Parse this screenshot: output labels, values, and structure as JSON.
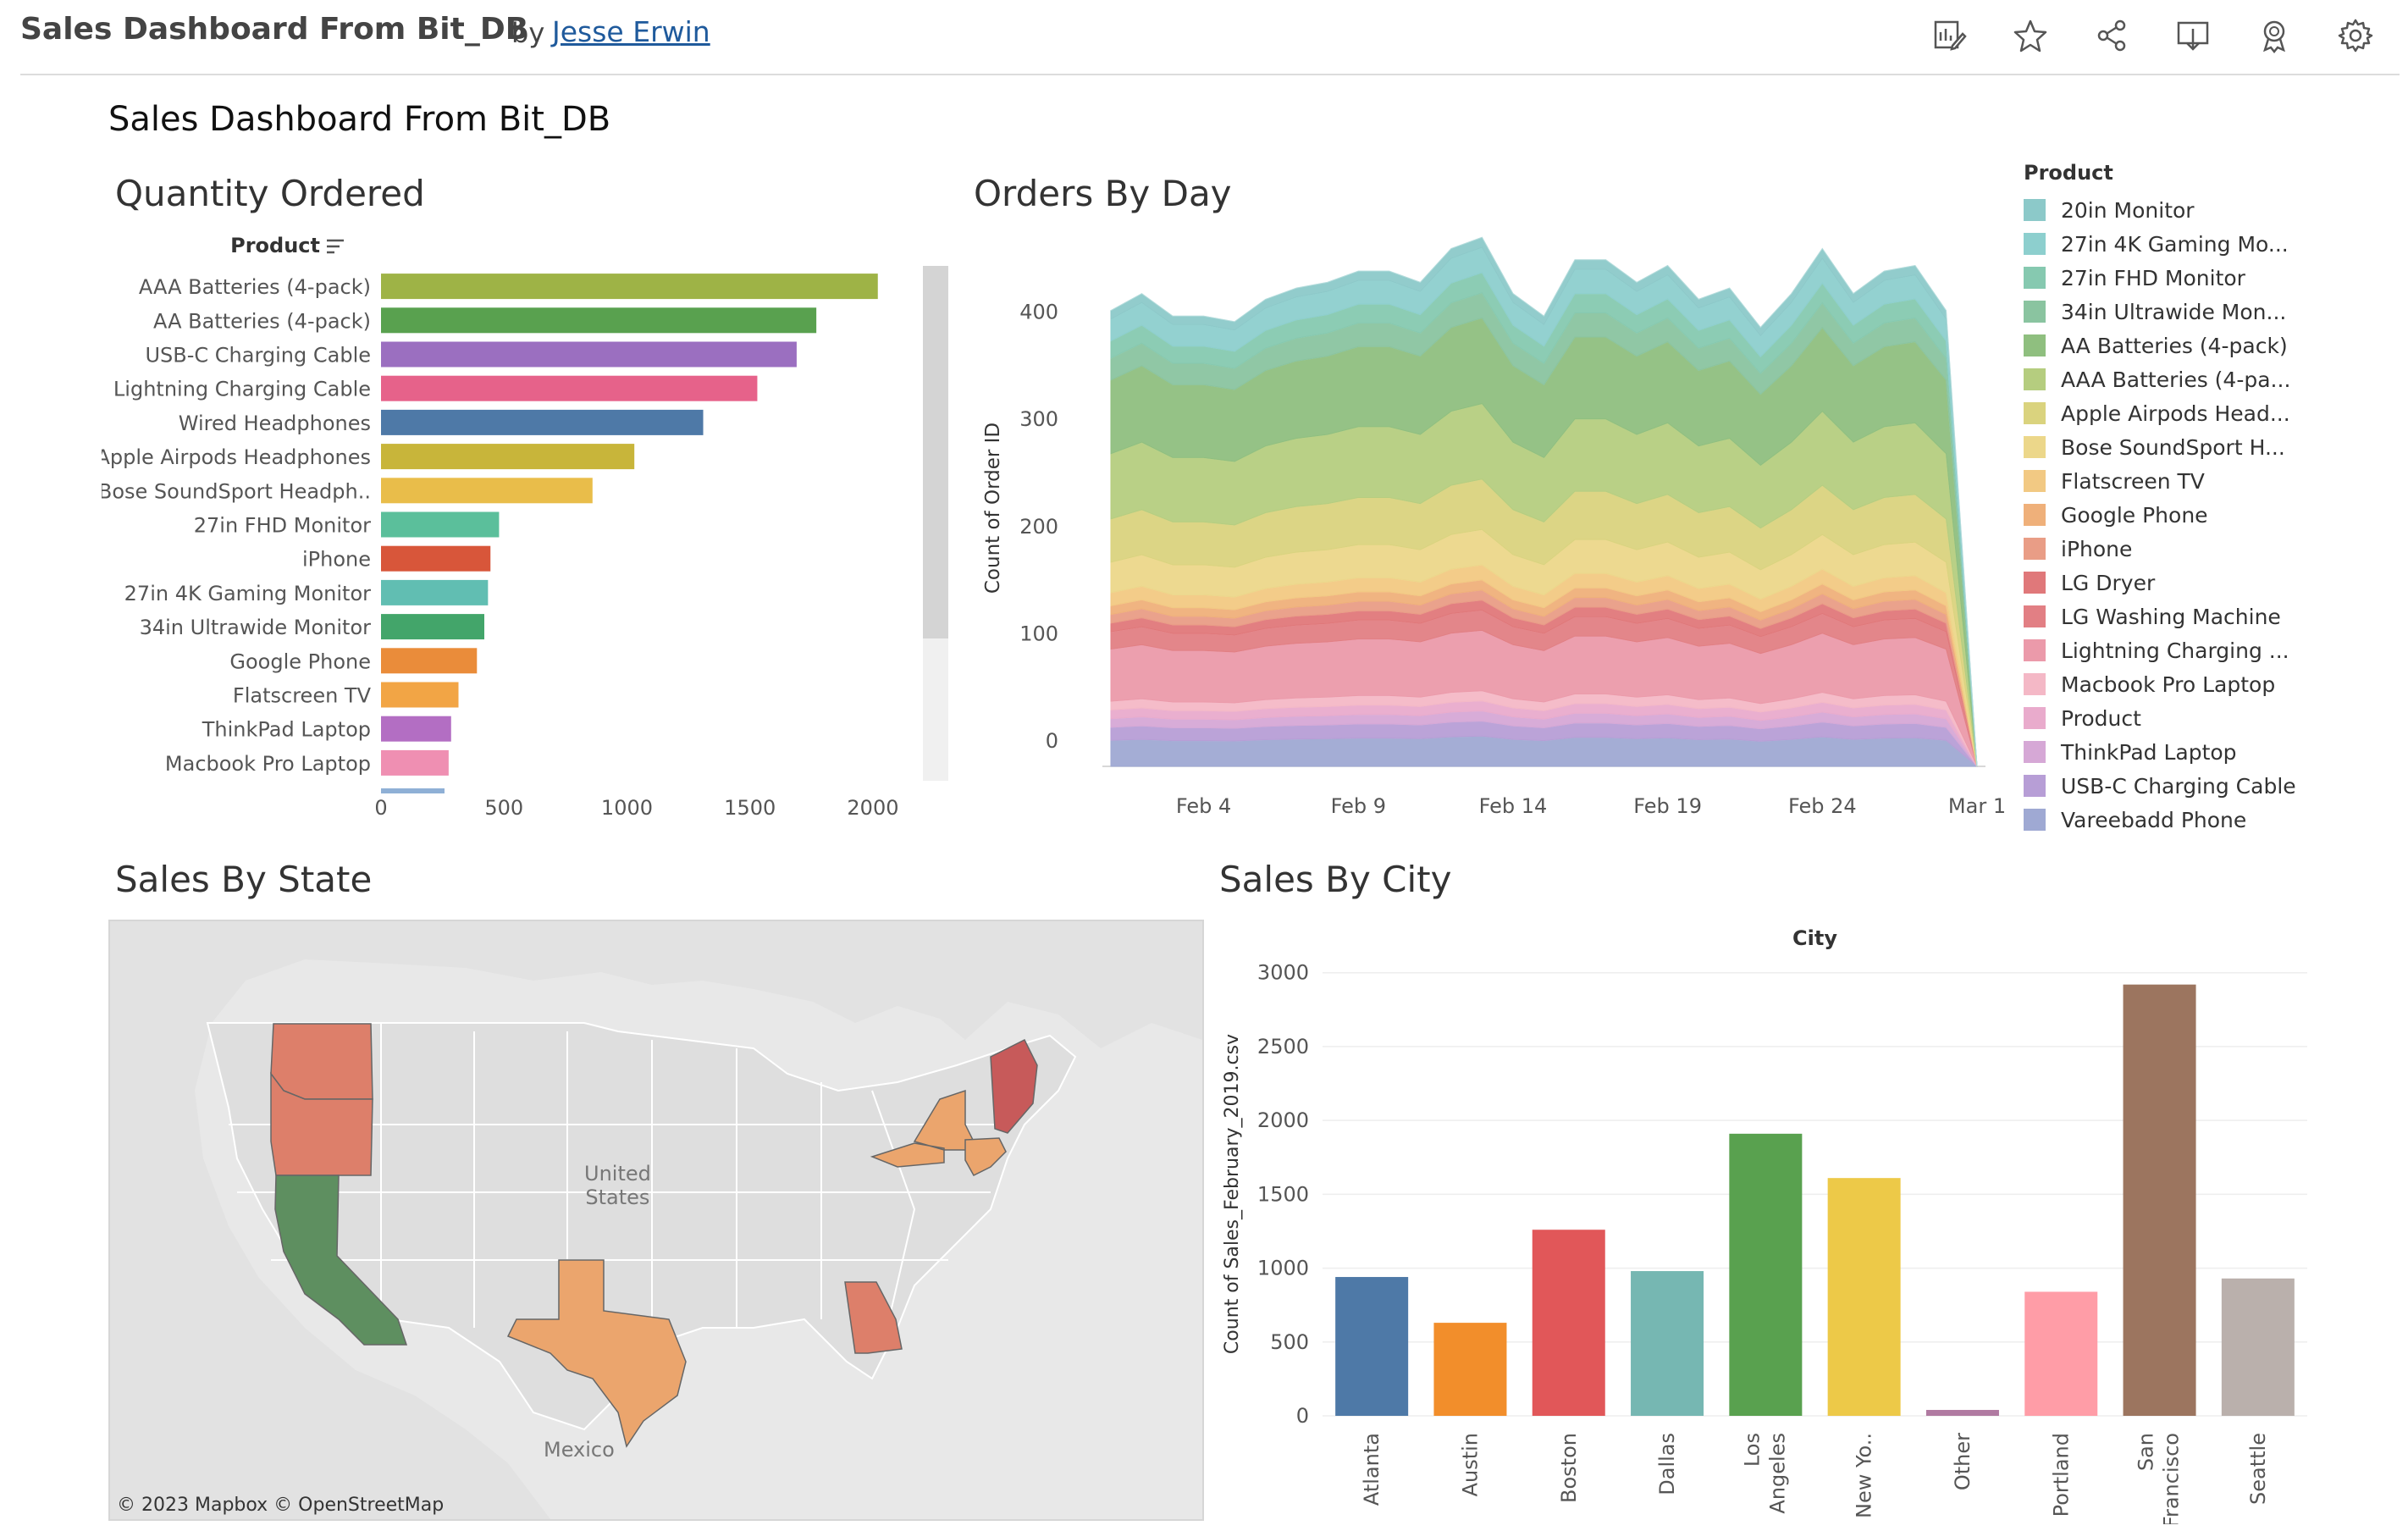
{
  "header": {
    "title": "Sales Dashboard From Bit_DB",
    "by": "by",
    "author": "Jesse Erwin",
    "icons": [
      "edit-icon",
      "star-icon",
      "share-icon",
      "download-icon",
      "award-icon",
      "gear-icon"
    ]
  },
  "dashboard": {
    "title": "Sales Dashboard From Bit_DB"
  },
  "quantity_ordered": {
    "title": "Quantity Ordered",
    "header": "Product",
    "chart_data": {
      "type": "bar",
      "orientation": "horizontal",
      "categories": [
        "AAA Batteries (4-pack)",
        "AA Batteries (4-pack)",
        "USB-C Charging Cable",
        "Lightning Charging Cable",
        "Wired Headphones",
        "Apple Airpods Headphones",
        "Bose SoundSport Headph..",
        "27in FHD Monitor",
        "iPhone",
        "27in 4K Gaming Monitor",
        "34in Ultrawide Monitor",
        "Google Phone",
        "Flatscreen TV",
        "ThinkPad Laptop",
        "Macbook Pro Laptop"
      ],
      "values": [
        2020,
        1770,
        1690,
        1530,
        1310,
        1030,
        860,
        480,
        445,
        435,
        420,
        390,
        315,
        285,
        275
      ],
      "colors": [
        "#9eb346",
        "#59a14f",
        "#9b6fc0",
        "#e6628a",
        "#4e79a7",
        "#c8b53a",
        "#e9bd4a",
        "#5bbf9b",
        "#d8563a",
        "#61beb2",
        "#43a56a",
        "#ea8c3a",
        "#f2a545",
        "#b36ec3",
        "#ef8fb2"
      ],
      "xlim": [
        0,
        2100
      ],
      "xticks": [
        0,
        500,
        1000,
        1500,
        2000
      ]
    }
  },
  "orders_by_day": {
    "title": "Orders By Day",
    "ylabel": "Count of Order ID",
    "legend_title": "Product",
    "legend": [
      {
        "label": "20in Monitor",
        "color": "#8cc9c9"
      },
      {
        "label": "27in 4K Gaming Mo...",
        "color": "#8dcfce"
      },
      {
        "label": "27in FHD Monitor",
        "color": "#86c9b0"
      },
      {
        "label": "34in Ultrawide Mon...",
        "color": "#8ac4a0"
      },
      {
        "label": "AA Batteries (4-pack)",
        "color": "#8fbf7f"
      },
      {
        "label": "AAA Batteries (4-pa...",
        "color": "#b5cd7f"
      },
      {
        "label": "Apple Airpods Head...",
        "color": "#dad37e"
      },
      {
        "label": "Bose SoundSport H...",
        "color": "#ecd78a"
      },
      {
        "label": "Flatscreen TV",
        "color": "#f2c983"
      },
      {
        "label": "Google Phone",
        "color": "#efb07a"
      },
      {
        "label": "iPhone",
        "color": "#e99d86"
      },
      {
        "label": "LG Dryer",
        "color": "#e0787a"
      },
      {
        "label": "LG Washing Machine",
        "color": "#e27f84"
      },
      {
        "label": "Lightning Charging ...",
        "color": "#eb9aaa"
      },
      {
        "label": "Macbook Pro Laptop",
        "color": "#f4b8c6"
      },
      {
        "label": "Product",
        "color": "#e9abcc"
      },
      {
        "label": "ThinkPad Laptop",
        "color": "#d6a8d6"
      },
      {
        "label": "USB-C Charging Cable",
        "color": "#b79ed6"
      },
      {
        "label": "Vareebadd Phone",
        "color": "#9fa9d3"
      }
    ],
    "chart_data": {
      "type": "area",
      "stacked": true,
      "x_start": "Feb 1",
      "x": [
        "Feb 1",
        "Feb 2",
        "Feb 3",
        "Feb 4",
        "Feb 5",
        "Feb 6",
        "Feb 7",
        "Feb 8",
        "Feb 9",
        "Feb 10",
        "Feb 11",
        "Feb 12",
        "Feb 13",
        "Feb 14",
        "Feb 15",
        "Feb 16",
        "Feb 17",
        "Feb 18",
        "Feb 19",
        "Feb 20",
        "Feb 21",
        "Feb 22",
        "Feb 23",
        "Feb 24",
        "Feb 25",
        "Feb 26",
        "Feb 27",
        "Feb 28",
        "Mar 1"
      ],
      "totals": [
        405,
        420,
        400,
        400,
        395,
        415,
        425,
        430,
        440,
        440,
        430,
        460,
        470,
        420,
        400,
        450,
        450,
        430,
        445,
        415,
        425,
        390,
        420,
        460,
        420,
        440,
        445,
        405,
        0
      ],
      "xticks": [
        "Feb 4",
        "Feb 9",
        "Feb 14",
        "Feb 19",
        "Feb 24",
        "Mar 1"
      ],
      "ylim": [
        0,
        470
      ],
      "yticks": [
        0,
        100,
        200,
        300,
        400
      ],
      "shares": [
        0.02,
        0.05,
        0.04,
        0.05,
        0.17,
        0.15,
        0.1,
        0.07,
        0.03,
        0.02,
        0.02,
        0.02,
        0.04,
        0.12,
        0.02,
        0.02,
        0.02,
        0.03,
        0.06
      ]
    }
  },
  "sales_by_state": {
    "title": "Sales By State",
    "labels": {
      "country": "United\nStates",
      "country_line1": "United",
      "country_line2": "States",
      "mexico": "Mexico"
    },
    "attribution": "© 2023 Mapbox  © OpenStreetMap",
    "highlighted_states": [
      {
        "name": "Washington",
        "color": "#dd7f6a"
      },
      {
        "name": "Oregon",
        "color": "#dd7f6a"
      },
      {
        "name": "California",
        "color": "#5e8f60"
      },
      {
        "name": "Texas",
        "color": "#eba56d"
      },
      {
        "name": "Georgia",
        "color": "#dd7f6a"
      },
      {
        "name": "New York",
        "color": "#eba56d"
      },
      {
        "name": "Massachusetts",
        "color": "#eba56d"
      },
      {
        "name": "Maine",
        "color": "#c75a5a"
      }
    ]
  },
  "sales_by_city": {
    "title": "Sales By City",
    "header": "City",
    "ylabel": "Count of Sales_February_2019.csv",
    "chart_data": {
      "type": "bar",
      "categories": [
        "Atlanta",
        "Austin",
        "Boston",
        "Dallas",
        "Los Angeles",
        "New Yo..",
        "Other",
        "Portland",
        "San Francisco",
        "Seattle"
      ],
      "category_lines": [
        [
          "Atlanta"
        ],
        [
          "Austin"
        ],
        [
          "Boston"
        ],
        [
          "Dallas"
        ],
        [
          "Los",
          "Angeles"
        ],
        [
          "New Yo.."
        ],
        [
          "Other"
        ],
        [
          "Portland"
        ],
        [
          "San",
          "Francisco"
        ],
        [
          "Seattle"
        ]
      ],
      "values": [
        940,
        630,
        1260,
        980,
        1910,
        1610,
        40,
        840,
        2920,
        930
      ],
      "colors": [
        "#4e79a7",
        "#f28e2b",
        "#e15759",
        "#76b7b2",
        "#59a14f",
        "#edc948",
        "#b07aa1",
        "#ff9da7",
        "#9c755f",
        "#bab0ac"
      ],
      "ylim": [
        0,
        3050
      ],
      "yticks": [
        0,
        500,
        1000,
        1500,
        2000,
        2500,
        3000
      ]
    }
  }
}
